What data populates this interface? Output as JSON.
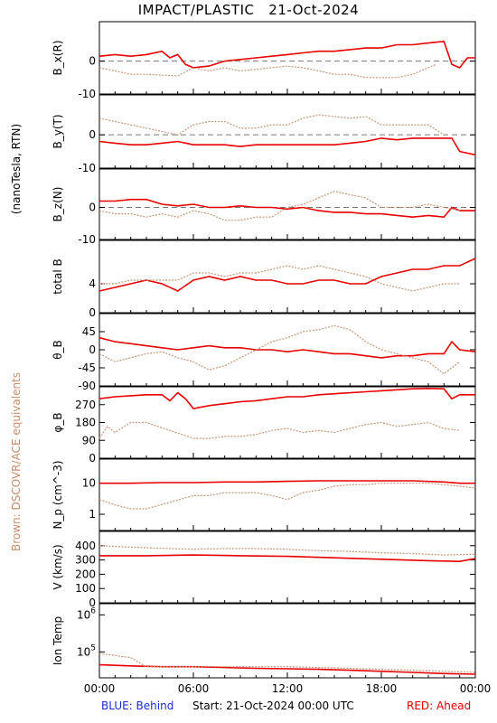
{
  "title": "IMPACT/PLASTIC   21-Oct-2024",
  "footer": {
    "blue": "BLUE: Behind",
    "start": "Start: 21-Oct-2024 00:00 UTC",
    "red": "RED: Ahead"
  },
  "side_labels": {
    "units": "(nanoTesla, RTN)",
    "brown": "Brown: DSCOVR/ACE equivalents"
  },
  "colors": {
    "red": "#e80000",
    "brown": "#c8957a",
    "axis": "#000000",
    "zero_line": "#777777"
  },
  "chart_data": [
    {
      "type": "line",
      "id": "bx",
      "ylabel": "B_x(R)",
      "ylim": [
        -10,
        12
      ],
      "yticks": [
        0,
        -10
      ],
      "zero_line": true,
      "series": [
        {
          "color": "red",
          "x": [
            0,
            1,
            2,
            3,
            4,
            4.5,
            5,
            5.5,
            6,
            7,
            8,
            9,
            10,
            11,
            12,
            13,
            14,
            15,
            16,
            17,
            18,
            19,
            20,
            21,
            22,
            22.5,
            23,
            23.5,
            24
          ],
          "y": [
            1.5,
            2,
            1.5,
            2,
            3,
            1,
            2,
            -1,
            -2,
            -1.5,
            0,
            0.5,
            1,
            1.5,
            2,
            2.5,
            3,
            3,
            3.5,
            4,
            4,
            5,
            5,
            5.5,
            6,
            -1,
            -2,
            1,
            1
          ]
        },
        {
          "color": "brown",
          "x": [
            0,
            1,
            2,
            3,
            5,
            6,
            7,
            8,
            9,
            10,
            11,
            12,
            13,
            14,
            15,
            16,
            17,
            18,
            19,
            20,
            21,
            21.5
          ],
          "y": [
            -2,
            -3,
            -4,
            -4,
            -4.5,
            -2,
            -3,
            -2,
            -3,
            -2.5,
            -2,
            -1.5,
            -2,
            -3,
            -4,
            -4,
            -5,
            -5,
            -5,
            -4,
            -2,
            -1
          ]
        }
      ]
    },
    {
      "type": "line",
      "id": "by",
      "ylabel": "B_y(T)",
      "ylim": [
        -10,
        12
      ],
      "yticks": [
        0,
        -10
      ],
      "zero_line": true,
      "series": [
        {
          "color": "red",
          "x": [
            0,
            1,
            2,
            3,
            4,
            5,
            6,
            7,
            8,
            9,
            10,
            11,
            12,
            13,
            14,
            15,
            16,
            17,
            18,
            19,
            20,
            21,
            22,
            22.5,
            23,
            24
          ],
          "y": [
            -2,
            -2.5,
            -3,
            -3,
            -2.5,
            -2,
            -3,
            -3,
            -3,
            -3.5,
            -3,
            -3,
            -3,
            -3,
            -3,
            -3,
            -2.5,
            -2,
            -1,
            -1.5,
            -1,
            -1,
            -1,
            -1,
            -5,
            -6
          ]
        },
        {
          "color": "brown",
          "x": [
            0,
            1,
            2,
            3,
            4,
            5,
            6,
            7,
            8,
            9,
            10,
            11,
            12,
            13,
            14,
            15,
            16,
            17,
            18,
            19,
            20,
            21,
            22
          ],
          "y": [
            5,
            4,
            3,
            2,
            1,
            0,
            3,
            4,
            4,
            2,
            2,
            3,
            3,
            5,
            6,
            5.5,
            5,
            5.5,
            3,
            3,
            3,
            3,
            0
          ]
        }
      ]
    },
    {
      "type": "line",
      "id": "bz",
      "ylabel": "B_z(N)",
      "ylim": [
        -10,
        12
      ],
      "yticks": [
        0,
        -10
      ],
      "zero_line": true,
      "series": [
        {
          "color": "red",
          "x": [
            0,
            1,
            2,
            3,
            4,
            5,
            6,
            7,
            8,
            9,
            10,
            11,
            12,
            13,
            14,
            15,
            16,
            17,
            18,
            19,
            20,
            21,
            22,
            22.5,
            23,
            24
          ],
          "y": [
            2,
            2,
            2.5,
            2.5,
            1,
            0.5,
            1,
            0,
            0,
            0.5,
            0,
            0,
            -0.5,
            0,
            -1,
            -1.5,
            -1.5,
            -2,
            -2,
            -2.5,
            -3,
            -2.5,
            -3,
            0,
            -1,
            -1
          ]
        },
        {
          "color": "brown",
          "x": [
            0,
            1,
            2,
            3,
            4,
            5,
            6,
            7,
            8,
            9,
            10,
            11,
            12,
            13,
            14,
            15,
            16,
            17,
            18,
            19,
            20,
            21,
            22,
            23
          ],
          "y": [
            -1,
            -2,
            -2,
            -3,
            -2,
            -3,
            -1,
            -2,
            -4,
            -4,
            -3,
            -3,
            0,
            1,
            3,
            5,
            4,
            3,
            0,
            0,
            0,
            1,
            0,
            -1
          ]
        }
      ]
    },
    {
      "type": "line",
      "id": "btot",
      "ylabel": "total B",
      "ylim": [
        0,
        10
      ],
      "yticks": [
        4,
        0
      ],
      "zero_line": false,
      "series": [
        {
          "color": "red",
          "x": [
            0,
            1,
            2,
            3,
            4,
            5,
            6,
            7,
            8,
            9,
            10,
            11,
            12,
            13,
            14,
            15,
            16,
            17,
            18,
            19,
            20,
            21,
            22,
            23,
            24
          ],
          "y": [
            3,
            3.5,
            4,
            4.5,
            4,
            3,
            4.5,
            5,
            4.5,
            5,
            4.5,
            4.5,
            4,
            4,
            4.5,
            4.5,
            4,
            4,
            5,
            5.5,
            6,
            6,
            6.5,
            6.5,
            7.5
          ]
        },
        {
          "color": "brown",
          "x": [
            0,
            1,
            2,
            3,
            4,
            5,
            6,
            7,
            8,
            9,
            10,
            11,
            12,
            13,
            14,
            15,
            16,
            17,
            18,
            19,
            20,
            21,
            22,
            23
          ],
          "y": [
            4,
            4,
            4.5,
            4.5,
            4.5,
            4.5,
            5.5,
            5.5,
            5,
            5.5,
            5.5,
            6,
            6.5,
            6,
            6.5,
            6,
            5.5,
            5,
            4,
            3.5,
            3,
            3.5,
            4,
            4
          ]
        }
      ]
    },
    {
      "type": "line",
      "id": "theta",
      "ylabel": "θ_B",
      "ylim": [
        -90,
        90
      ],
      "yticks": [
        45,
        0,
        -45,
        -90
      ],
      "zero_line": false,
      "series": [
        {
          "color": "red",
          "x": [
            0,
            1,
            2,
            3,
            4,
            5,
            6,
            7,
            8,
            9,
            10,
            11,
            12,
            13,
            14,
            15,
            16,
            17,
            18,
            19,
            20,
            21,
            22,
            22.5,
            23,
            24
          ],
          "y": [
            30,
            20,
            15,
            10,
            5,
            0,
            5,
            10,
            5,
            5,
            0,
            0,
            -5,
            0,
            -5,
            -10,
            -10,
            -15,
            -20,
            -15,
            -15,
            -10,
            -10,
            20,
            0,
            -5
          ]
        },
        {
          "color": "brown",
          "x": [
            0,
            1,
            2,
            3,
            4,
            5,
            6,
            7,
            8,
            9,
            10,
            11,
            12,
            13,
            14,
            15,
            16,
            17,
            18,
            19,
            20,
            21,
            22,
            23
          ],
          "y": [
            -10,
            -30,
            -20,
            -10,
            -5,
            -20,
            -30,
            -50,
            -40,
            -20,
            0,
            20,
            30,
            45,
            50,
            60,
            50,
            20,
            0,
            -10,
            -20,
            -30,
            -60,
            -30
          ]
        }
      ]
    },
    {
      "type": "line",
      "id": "phi",
      "ylabel": "φ_B",
      "ylim": [
        0,
        360
      ],
      "yticks": [
        270,
        180,
        90,
        0
      ],
      "zero_line": false,
      "series": [
        {
          "color": "red",
          "x": [
            0,
            1,
            2,
            3,
            4,
            4.5,
            5,
            5.5,
            6,
            7,
            8,
            9,
            10,
            11,
            12,
            13,
            14,
            15,
            16,
            17,
            18,
            19,
            20,
            21,
            22,
            22.5,
            23,
            24
          ],
          "y": [
            300,
            310,
            315,
            320,
            320,
            290,
            330,
            300,
            250,
            265,
            275,
            285,
            290,
            300,
            310,
            310,
            320,
            325,
            330,
            335,
            340,
            345,
            350,
            352,
            350,
            300,
            320,
            320
          ]
        },
        {
          "color": "brown",
          "x": [
            0,
            0.5,
            1,
            2,
            3,
            6,
            7,
            8,
            9,
            10,
            11,
            12,
            13,
            14,
            15,
            16,
            17,
            18,
            19,
            20,
            21,
            22,
            23
          ],
          "y": [
            100,
            160,
            130,
            180,
            180,
            100,
            100,
            110,
            110,
            120,
            140,
            150,
            130,
            140,
            130,
            150,
            170,
            180,
            160,
            170,
            180,
            150,
            140
          ]
        }
      ]
    },
    {
      "type": "line",
      "id": "np",
      "ylabel": "N_p (cm^-3)",
      "ylim": [
        0.3,
        60
      ],
      "scale": "log",
      "yticks": [
        10,
        1
      ],
      "zero_line": false,
      "series": [
        {
          "color": "red",
          "x": [
            0,
            2,
            4,
            6,
            8,
            10,
            12,
            14,
            16,
            18,
            20,
            22,
            23,
            24
          ],
          "y": [
            10,
            10,
            10.5,
            10.5,
            11,
            11,
            11.5,
            12,
            12,
            12,
            12,
            11,
            10,
            10
          ]
        },
        {
          "color": "brown",
          "x": [
            0,
            1,
            2,
            3,
            6,
            7,
            8,
            9,
            10,
            11,
            12,
            13,
            14,
            15,
            16,
            17,
            18,
            19,
            20,
            21,
            22,
            23,
            24
          ],
          "y": [
            3,
            2,
            1.5,
            1.5,
            4,
            4,
            5,
            5,
            5,
            4,
            3,
            5,
            6,
            8,
            9,
            9,
            10,
            10,
            10,
            10,
            9,
            8,
            7
          ]
        }
      ]
    },
    {
      "type": "line",
      "id": "v",
      "ylabel": "V (km/s)",
      "ylim": [
        0,
        500
      ],
      "yticks": [
        400,
        300,
        200,
        100,
        0
      ],
      "zero_line": false,
      "series": [
        {
          "color": "red",
          "x": [
            0,
            3,
            6,
            9,
            12,
            15,
            18,
            21,
            23,
            24
          ],
          "y": [
            330,
            330,
            335,
            330,
            325,
            315,
            305,
            295,
            290,
            310
          ]
        },
        {
          "color": "brown",
          "x": [
            0,
            1,
            2,
            3,
            6,
            8,
            10,
            12,
            14,
            16,
            18,
            20,
            22,
            24
          ],
          "y": [
            400,
            395,
            390,
            385,
            375,
            380,
            380,
            375,
            365,
            360,
            350,
            345,
            335,
            340
          ]
        }
      ]
    },
    {
      "type": "line",
      "id": "temp",
      "ylabel": "Ion Temp",
      "ylim": [
        20000,
        2000000
      ],
      "scale": "log",
      "ytick_labels": [
        "10^6",
        "10^5"
      ],
      "yticks": [
        1000000,
        100000
      ],
      "zero_line": false,
      "series": [
        {
          "color": "red",
          "x": [
            0,
            2,
            4,
            6,
            8,
            10,
            12,
            14,
            16,
            18,
            20,
            22,
            24
          ],
          "y": [
            45000,
            42000,
            40000,
            40000,
            38000,
            36000,
            35000,
            34000,
            32000,
            30000,
            28000,
            26000,
            25000
          ]
        },
        {
          "color": "brown",
          "x": [
            0,
            1,
            2,
            3,
            10,
            12,
            14,
            16,
            18,
            20,
            22,
            24
          ],
          "y": [
            90000,
            80000,
            70000,
            40000,
            40000,
            40000,
            38000,
            36000,
            34000,
            32000,
            30000,
            28000
          ]
        }
      ]
    }
  ],
  "xticks": [
    "00:00",
    "06:00",
    "12:00",
    "18:00",
    "00:00"
  ]
}
